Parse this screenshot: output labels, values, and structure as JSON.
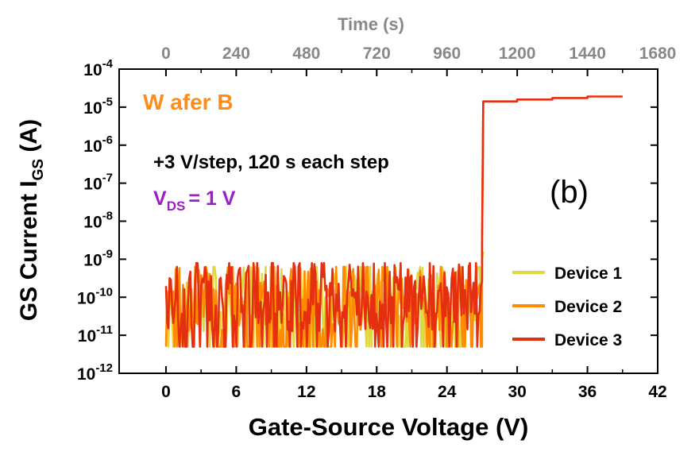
{
  "chart_data": {
    "type": "line",
    "title": "",
    "panel_label": "(b)",
    "xlabel": "Gate-Source Voltage (V)",
    "x2label": "Time (s)",
    "ylabel_main": "GS Current I",
    "ylabel_sub": "GS",
    "ylabel_unit": " (A)",
    "xlim": [
      -4,
      42
    ],
    "xticks": [
      0,
      6,
      12,
      18,
      24,
      30,
      36,
      42
    ],
    "x2ticks": [
      0,
      240,
      480,
      720,
      960,
      1200,
      1440,
      1680
    ],
    "ylim_exponent": [
      -12,
      -4
    ],
    "yticks_exponent": [
      -12,
      -11,
      -10,
      -9,
      -8,
      -7,
      -6,
      -5,
      -4
    ],
    "ytick_base": "10",
    "annotations": {
      "wafer": "W afer B",
      "step": "+3 V/step, 120 s each step",
      "vds_main": "V",
      "vds_sub": "DS",
      "vds_value": "= 1 V"
    },
    "legend": {
      "position": "bottom-right",
      "entries": [
        "Device 1",
        "Device 2",
        "Device 3"
      ]
    },
    "series": [
      {
        "name": "Device 1",
        "color": "#e0d840",
        "noise": {
          "x_range": [
            0,
            27
          ],
          "log_range": [
            -11.3,
            -9.2
          ],
          "floor_exponent": -11.3
        },
        "breakdown_x": 27,
        "points": [
          [
            27,
            -9.0
          ],
          [
            27.1,
            -8.8
          ]
        ]
      },
      {
        "name": "Device 2",
        "color": "#ff8c00",
        "noise": {
          "x_range": [
            0,
            27
          ],
          "log_range": [
            -11.3,
            -9.2
          ],
          "floor_exponent": -11.3
        },
        "breakdown_x": 27,
        "points": [
          [
            27,
            -8.6
          ],
          [
            27.1,
            -4.85
          ]
        ]
      },
      {
        "name": "Device 3",
        "color": "#e43010",
        "noise": {
          "x_range": [
            0,
            27
          ],
          "log_range": [
            -11.3,
            -9.1
          ],
          "floor_exponent": -11.3
        },
        "breakdown_x": 27,
        "points": [
          [
            27,
            -8.6
          ],
          [
            27.1,
            -4.85
          ],
          [
            30,
            -4.85
          ],
          [
            30,
            -4.8
          ],
          [
            33,
            -4.8
          ],
          [
            33,
            -4.76
          ],
          [
            36,
            -4.76
          ],
          [
            36,
            -4.72
          ],
          [
            39,
            -4.72
          ]
        ]
      }
    ]
  }
}
